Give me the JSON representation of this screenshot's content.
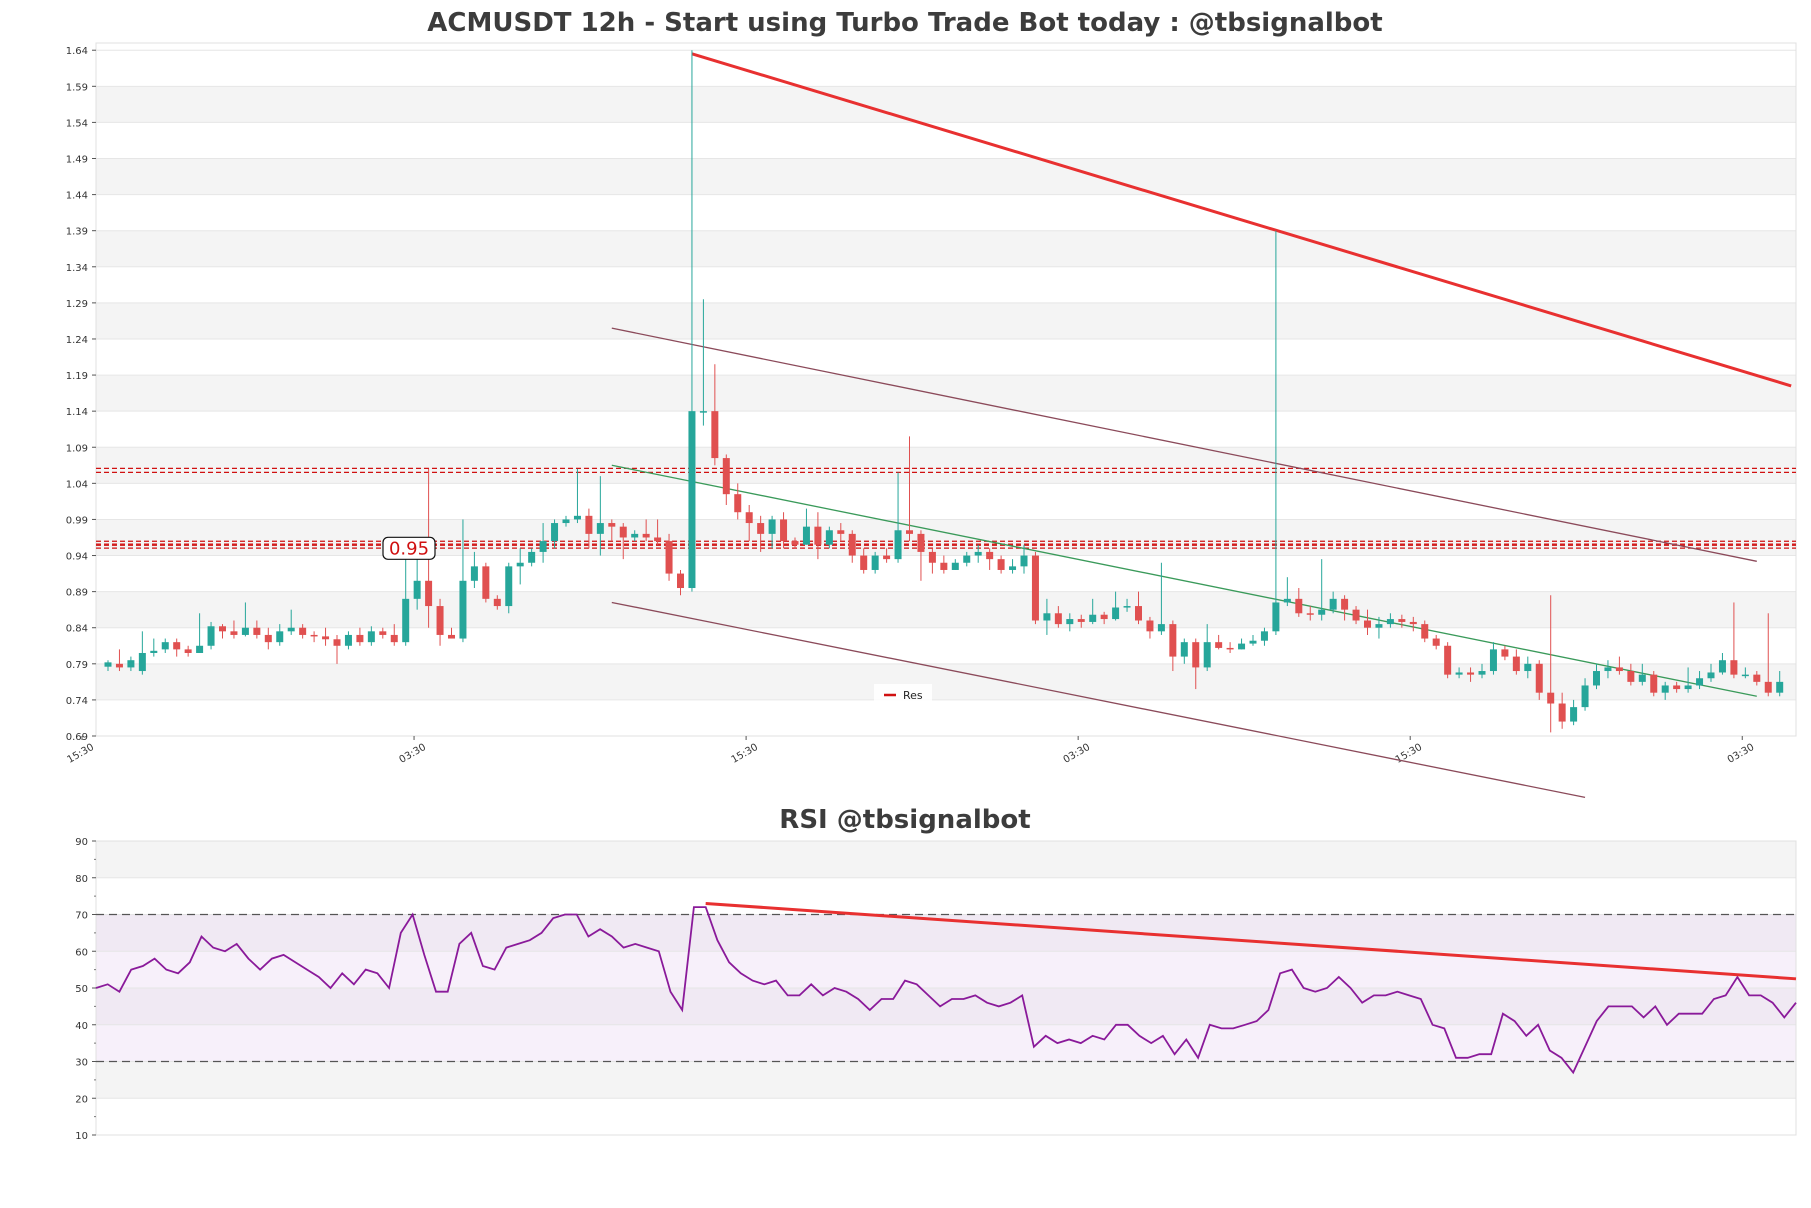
{
  "page": {
    "title": "ACMUSDT 12h - Start using Turbo Trade Bot today : @tbsignalbot"
  },
  "colors": {
    "bull": "#26a69a",
    "bear": "#e05050",
    "trend_main": "#e83030",
    "channel": "#8b4a5a",
    "mid_trend": "#3a9a5a",
    "rsi_line": "#8a1a9a",
    "band": "#f4f4f4",
    "grid": "#e6e6e6"
  },
  "chart_data": [
    {
      "type": "candlestick",
      "title": "ACMUSDT 12h - Start using Turbo Trade Bot today : @tbsignalbot",
      "ylim": [
        0.69,
        1.65
      ],
      "yticks": [
        "0.69",
        "0.74",
        "0.79",
        "0.84",
        "0.89",
        "0.94",
        "0.99",
        "1.04",
        "1.09",
        "1.14",
        "1.19",
        "1.24",
        "1.29",
        "1.34",
        "1.39",
        "1.44",
        "1.49",
        "1.54",
        "1.59",
        "1.64"
      ],
      "xticks": [
        {
          "label": "15:30",
          "index": 0
        },
        {
          "label": "03:30",
          "index": 29
        },
        {
          "label": "15:30",
          "index": 58
        },
        {
          "label": "03:30",
          "index": 87
        },
        {
          "label": "15:30",
          "index": 116
        },
        {
          "label": "03:30",
          "index": 145
        }
      ],
      "price_label": "0.95",
      "legend": {
        "entries": [
          "Res"
        ],
        "position": "bottom-center"
      },
      "candles": [
        [
          0.786,
          0.792,
          0.78,
          0.795
        ],
        [
          0.79,
          0.785,
          0.78,
          0.81
        ],
        [
          0.785,
          0.795,
          0.78,
          0.8
        ],
        [
          0.78,
          0.805,
          0.775,
          0.835
        ],
        [
          0.805,
          0.808,
          0.8,
          0.825
        ],
        [
          0.81,
          0.82,
          0.805,
          0.825
        ],
        [
          0.82,
          0.81,
          0.8,
          0.825
        ],
        [
          0.81,
          0.805,
          0.8,
          0.815
        ],
        [
          0.805,
          0.815,
          0.805,
          0.86
        ],
        [
          0.815,
          0.842,
          0.81,
          0.848
        ],
        [
          0.842,
          0.835,
          0.825,
          0.845
        ],
        [
          0.835,
          0.83,
          0.825,
          0.85
        ],
        [
          0.83,
          0.84,
          0.828,
          0.875
        ],
        [
          0.84,
          0.83,
          0.825,
          0.85
        ],
        [
          0.83,
          0.82,
          0.81,
          0.84
        ],
        [
          0.82,
          0.835,
          0.815,
          0.845
        ],
        [
          0.835,
          0.84,
          0.83,
          0.865
        ],
        [
          0.84,
          0.83,
          0.825,
          0.845
        ],
        [
          0.83,
          0.828,
          0.82,
          0.835
        ],
        [
          0.828,
          0.824,
          0.815,
          0.84
        ],
        [
          0.824,
          0.815,
          0.79,
          0.83
        ],
        [
          0.815,
          0.83,
          0.81,
          0.835
        ],
        [
          0.83,
          0.82,
          0.815,
          0.84
        ],
        [
          0.82,
          0.835,
          0.815,
          0.842
        ],
        [
          0.835,
          0.83,
          0.825,
          0.84
        ],
        [
          0.83,
          0.82,
          0.815,
          0.845
        ],
        [
          0.82,
          0.88,
          0.815,
          0.95
        ],
        [
          0.88,
          0.905,
          0.865,
          0.94
        ],
        [
          0.905,
          0.87,
          0.84,
          1.06
        ],
        [
          0.87,
          0.83,
          0.815,
          0.88
        ],
        [
          0.83,
          0.825,
          0.825,
          0.84
        ],
        [
          0.825,
          0.905,
          0.82,
          0.99
        ],
        [
          0.905,
          0.925,
          0.895,
          0.945
        ],
        [
          0.925,
          0.88,
          0.875,
          0.93
        ],
        [
          0.88,
          0.87,
          0.865,
          0.885
        ],
        [
          0.87,
          0.925,
          0.86,
          0.93
        ],
        [
          0.925,
          0.93,
          0.9,
          0.95
        ],
        [
          0.93,
          0.945,
          0.925,
          0.95
        ],
        [
          0.945,
          0.96,
          0.93,
          0.985
        ],
        [
          0.96,
          0.985,
          0.95,
          0.99
        ],
        [
          0.985,
          0.99,
          0.98,
          0.995
        ],
        [
          0.99,
          0.995,
          0.985,
          1.06
        ],
        [
          0.995,
          0.97,
          0.95,
          1.005
        ],
        [
          0.97,
          0.985,
          0.94,
          1.05
        ],
        [
          0.985,
          0.98,
          0.96,
          0.99
        ],
        [
          0.98,
          0.965,
          0.935,
          0.985
        ],
        [
          0.965,
          0.97,
          0.96,
          0.975
        ],
        [
          0.97,
          0.965,
          0.96,
          0.99
        ],
        [
          0.965,
          0.96,
          0.955,
          0.99
        ],
        [
          0.96,
          0.915,
          0.905,
          0.97
        ],
        [
          0.915,
          0.895,
          0.885,
          0.92
        ],
        [
          0.895,
          1.14,
          0.89,
          1.64
        ],
        [
          1.14,
          1.14,
          1.12,
          1.295
        ],
        [
          1.14,
          1.075,
          1.065,
          1.205
        ],
        [
          1.075,
          1.025,
          1.01,
          1.08
        ],
        [
          1.025,
          1.0,
          0.99,
          1.04
        ],
        [
          1.0,
          0.985,
          0.96,
          1.01
        ],
        [
          0.985,
          0.97,
          0.945,
          0.995
        ],
        [
          0.97,
          0.99,
          0.95,
          0.995
        ],
        [
          0.99,
          0.96,
          0.95,
          1.0
        ],
        [
          0.96,
          0.955,
          0.95,
          0.965
        ],
        [
          0.955,
          0.98,
          0.955,
          1.005
        ],
        [
          0.98,
          0.955,
          0.935,
          1.0
        ],
        [
          0.955,
          0.975,
          0.95,
          0.98
        ],
        [
          0.975,
          0.97,
          0.96,
          0.985
        ],
        [
          0.97,
          0.94,
          0.93,
          0.975
        ],
        [
          0.94,
          0.92,
          0.915,
          0.95
        ],
        [
          0.92,
          0.94,
          0.915,
          0.945
        ],
        [
          0.94,
          0.935,
          0.93,
          0.95
        ],
        [
          0.935,
          0.975,
          0.93,
          1.055
        ],
        [
          0.975,
          0.97,
          0.96,
          1.105
        ],
        [
          0.97,
          0.945,
          0.905,
          0.975
        ],
        [
          0.945,
          0.93,
          0.915,
          0.95
        ],
        [
          0.93,
          0.92,
          0.915,
          0.94
        ],
        [
          0.92,
          0.93,
          0.92,
          0.935
        ],
        [
          0.93,
          0.94,
          0.925,
          0.945
        ],
        [
          0.94,
          0.945,
          0.93,
          0.955
        ],
        [
          0.945,
          0.935,
          0.92,
          0.95
        ],
        [
          0.935,
          0.92,
          0.915,
          0.94
        ],
        [
          0.92,
          0.925,
          0.915,
          0.935
        ],
        [
          0.925,
          0.94,
          0.915,
          0.955
        ],
        [
          0.94,
          0.85,
          0.845,
          0.945
        ],
        [
          0.85,
          0.86,
          0.83,
          0.88
        ],
        [
          0.86,
          0.845,
          0.84,
          0.87
        ],
        [
          0.845,
          0.852,
          0.835,
          0.86
        ],
        [
          0.852,
          0.848,
          0.84,
          0.858
        ],
        [
          0.848,
          0.858,
          0.845,
          0.88
        ],
        [
          0.858,
          0.852,
          0.845,
          0.862
        ],
        [
          0.852,
          0.868,
          0.85,
          0.89
        ],
        [
          0.868,
          0.87,
          0.862,
          0.88
        ],
        [
          0.87,
          0.85,
          0.845,
          0.89
        ],
        [
          0.85,
          0.835,
          0.825,
          0.855
        ],
        [
          0.835,
          0.845,
          0.83,
          0.93
        ],
        [
          0.845,
          0.8,
          0.78,
          0.85
        ],
        [
          0.8,
          0.82,
          0.79,
          0.825
        ],
        [
          0.82,
          0.785,
          0.755,
          0.825
        ],
        [
          0.785,
          0.82,
          0.78,
          0.845
        ],
        [
          0.82,
          0.812,
          0.81,
          0.83
        ],
        [
          0.812,
          0.81,
          0.805,
          0.82
        ],
        [
          0.81,
          0.818,
          0.81,
          0.825
        ],
        [
          0.818,
          0.822,
          0.815,
          0.83
        ],
        [
          0.822,
          0.835,
          0.815,
          0.84
        ],
        [
          0.835,
          0.875,
          0.83,
          1.39
        ],
        [
          0.875,
          0.88,
          0.87,
          0.91
        ],
        [
          0.88,
          0.86,
          0.855,
          0.895
        ],
        [
          0.86,
          0.858,
          0.85,
          0.87
        ],
        [
          0.858,
          0.865,
          0.85,
          0.935
        ],
        [
          0.865,
          0.88,
          0.86,
          0.89
        ],
        [
          0.88,
          0.865,
          0.85,
          0.885
        ],
        [
          0.865,
          0.85,
          0.845,
          0.87
        ],
        [
          0.85,
          0.84,
          0.83,
          0.865
        ],
        [
          0.84,
          0.845,
          0.825,
          0.855
        ],
        [
          0.845,
          0.852,
          0.84,
          0.86
        ],
        [
          0.852,
          0.848,
          0.84,
          0.858
        ],
        [
          0.848,
          0.845,
          0.835,
          0.855
        ],
        [
          0.845,
          0.825,
          0.82,
          0.85
        ],
        [
          0.825,
          0.815,
          0.81,
          0.83
        ],
        [
          0.815,
          0.775,
          0.77,
          0.82
        ],
        [
          0.775,
          0.778,
          0.77,
          0.785
        ],
        [
          0.778,
          0.775,
          0.765,
          0.785
        ],
        [
          0.775,
          0.78,
          0.77,
          0.79
        ],
        [
          0.78,
          0.81,
          0.775,
          0.82
        ],
        [
          0.81,
          0.8,
          0.795,
          0.815
        ],
        [
          0.8,
          0.78,
          0.775,
          0.81
        ],
        [
          0.78,
          0.79,
          0.77,
          0.8
        ],
        [
          0.79,
          0.75,
          0.74,
          0.795
        ],
        [
          0.75,
          0.735,
          0.695,
          0.885
        ],
        [
          0.735,
          0.71,
          0.7,
          0.75
        ],
        [
          0.71,
          0.73,
          0.705,
          0.74
        ],
        [
          0.73,
          0.76,
          0.725,
          0.77
        ],
        [
          0.76,
          0.78,
          0.755,
          0.79
        ],
        [
          0.78,
          0.785,
          0.77,
          0.795
        ],
        [
          0.785,
          0.78,
          0.775,
          0.8
        ],
        [
          0.78,
          0.765,
          0.76,
          0.79
        ],
        [
          0.765,
          0.775,
          0.76,
          0.79
        ],
        [
          0.775,
          0.75,
          0.745,
          0.78
        ],
        [
          0.75,
          0.76,
          0.74,
          0.765
        ],
        [
          0.76,
          0.755,
          0.75,
          0.765
        ],
        [
          0.755,
          0.76,
          0.75,
          0.785
        ],
        [
          0.76,
          0.77,
          0.755,
          0.78
        ],
        [
          0.77,
          0.778,
          0.765,
          0.79
        ],
        [
          0.778,
          0.795,
          0.775,
          0.805
        ],
        [
          0.795,
          0.775,
          0.77,
          0.875
        ],
        [
          0.775,
          0.775,
          0.77,
          0.785
        ],
        [
          0.775,
          0.765,
          0.76,
          0.78
        ],
        [
          0.765,
          0.75,
          0.745,
          0.86
        ],
        [
          0.75,
          0.765,
          0.745,
          0.78
        ]
      ],
      "resistance_levels": [
        1.058,
        0.957,
        0.953
      ],
      "trendlines": [
        {
          "role": "main",
          "from": [
            51,
            1.635
          ],
          "to": [
            147,
            1.175
          ]
        },
        {
          "role": "channel",
          "from": [
            44,
            1.255
          ],
          "to": [
            144,
            0.932
          ]
        },
        {
          "role": "channel",
          "from": [
            44,
            0.875
          ],
          "to": [
            129,
            0.605
          ]
        },
        {
          "role": "mid",
          "from": [
            44,
            1.065
          ],
          "to": [
            144,
            0.745
          ]
        }
      ]
    },
    {
      "type": "line",
      "title": "RSI @tbsignalbot",
      "ylim": [
        10,
        90
      ],
      "yticks": [
        "10",
        "20",
        "30",
        "40",
        "50",
        "60",
        "70",
        "80",
        "90"
      ],
      "levels": [
        30,
        70
      ],
      "values": [
        50,
        51,
        49,
        55,
        56,
        58,
        55,
        54,
        57,
        64,
        61,
        60,
        62,
        58,
        55,
        58,
        59,
        57,
        55,
        53,
        50,
        54,
        51,
        55,
        54,
        50,
        65,
        70,
        59,
        49,
        49,
        62,
        65,
        56,
        55,
        61,
        62,
        63,
        65,
        69,
        70,
        70,
        64,
        66,
        64,
        61,
        62,
        61,
        60,
        49,
        44,
        72,
        72,
        63,
        57,
        54,
        52,
        51,
        52,
        48,
        48,
        51,
        48,
        50,
        49,
        47,
        44,
        47,
        47,
        52,
        51,
        48,
        45,
        47,
        47,
        48,
        46,
        45,
        46,
        48,
        34,
        37,
        35,
        36,
        35,
        37,
        36,
        40,
        40,
        37,
        35,
        37,
        32,
        36,
        31,
        40,
        39,
        39,
        40,
        41,
        44,
        54,
        55,
        50,
        49,
        50,
        53,
        50,
        46,
        48,
        48,
        49,
        48,
        47,
        40,
        39,
        31,
        31,
        32,
        32,
        43,
        41,
        37,
        40,
        33,
        31,
        27,
        34,
        41,
        45,
        45,
        45,
        42,
        45,
        40,
        43,
        43,
        43,
        47,
        48,
        53,
        48,
        48,
        46,
        42,
        46
      ],
      "trendline": {
        "from": [
          52,
          73
        ],
        "to": [
          147,
          52.5
        ]
      }
    }
  ]
}
